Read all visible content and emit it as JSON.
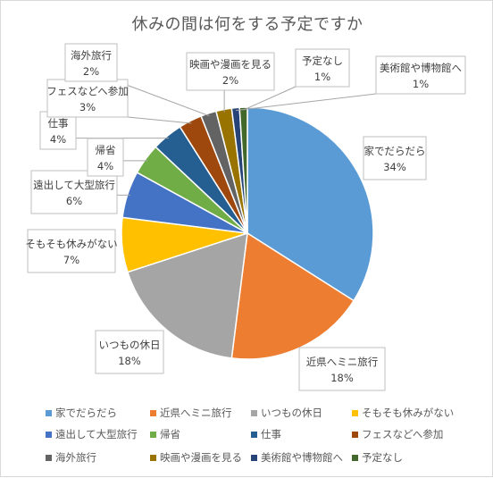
{
  "chart_data": {
    "type": "pie",
    "title": "休みの間は何をする予定ですか",
    "legend_position": "bottom",
    "slices": [
      {
        "name": "家でだらだら",
        "value": 34,
        "label": "34%",
        "color": "#5b9bd5"
      },
      {
        "name": "近県へミニ旅行",
        "value": 18,
        "label": "18%",
        "color": "#ed7d31"
      },
      {
        "name": "いつもの休日",
        "value": 18,
        "label": "18%",
        "color": "#a5a5a5"
      },
      {
        "name": "そもそも休みがない",
        "value": 7,
        "label": "7%",
        "color": "#ffc000"
      },
      {
        "name": "遠出して大型旅行",
        "value": 6,
        "label": "6%",
        "color": "#4472c4"
      },
      {
        "name": "帰省",
        "value": 4,
        "label": "4%",
        "color": "#70ad47"
      },
      {
        "name": "仕事",
        "value": 4,
        "label": "4%",
        "color": "#255e91"
      },
      {
        "name": "フェスなどへ参加",
        "value": 3,
        "label": "3%",
        "color": "#9e480e"
      },
      {
        "name": "海外旅行",
        "value": 2,
        "label": "2%",
        "color": "#636363"
      },
      {
        "name": "映画や漫画を見る",
        "value": 2,
        "label": "2%",
        "color": "#997300"
      },
      {
        "name": "美術館や博物館へ",
        "value": 1,
        "label": "1%",
        "color": "#264478"
      },
      {
        "name": "予定なし",
        "value": 1,
        "label": "1%",
        "color": "#43682b"
      }
    ],
    "legend_order": [
      "家でだらだら",
      "近県へミニ旅行",
      "いつもの休日",
      "そもそも休みがない",
      "遠出して大型旅行",
      "帰省",
      "仕事",
      "フェスなどへ参加",
      "海外旅行",
      "映画や漫画を見る",
      "美術館や博物館へ",
      "予定なし"
    ]
  }
}
